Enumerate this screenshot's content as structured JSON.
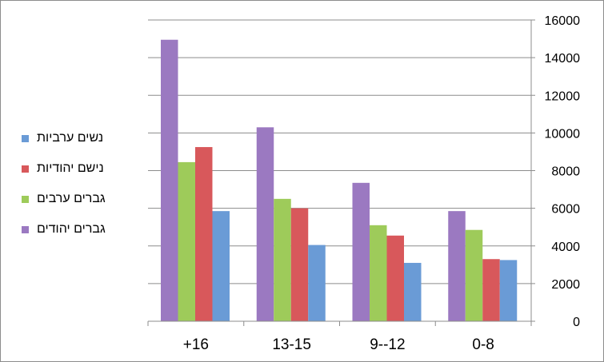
{
  "chart_data": {
    "type": "bar",
    "categories": [
      "+16",
      "13-15",
      "9--12",
      "0-8"
    ],
    "series": [
      {
        "name": "גברים יהודים",
        "color": "#9b79c1",
        "values": [
          14950,
          10300,
          7350,
          5850
        ]
      },
      {
        "name": "גברים ערבים",
        "color": "#9ecb5a",
        "values": [
          8450,
          6500,
          5100,
          4850
        ]
      },
      {
        "name": "נישם יהודיות",
        "color": "#d8585b",
        "values": [
          9250,
          6000,
          4550,
          3300
        ]
      },
      {
        "name": "נשים ערביות",
        "color": "#6a9bd6",
        "values": [
          5850,
          4050,
          3100,
          3250
        ]
      }
    ],
    "legend_order": [
      "נשים ערביות",
      "נישם יהודיות",
      "גברים ערבים",
      "גברים יהודים"
    ],
    "ylim": [
      0,
      16000
    ],
    "yticks": [
      0,
      2000,
      4000,
      6000,
      8000,
      10000,
      12000,
      14000,
      16000
    ],
    "y_axis_position": "right",
    "grid": true,
    "legend_position": "left",
    "title": "",
    "xlabel": "",
    "ylabel": ""
  }
}
